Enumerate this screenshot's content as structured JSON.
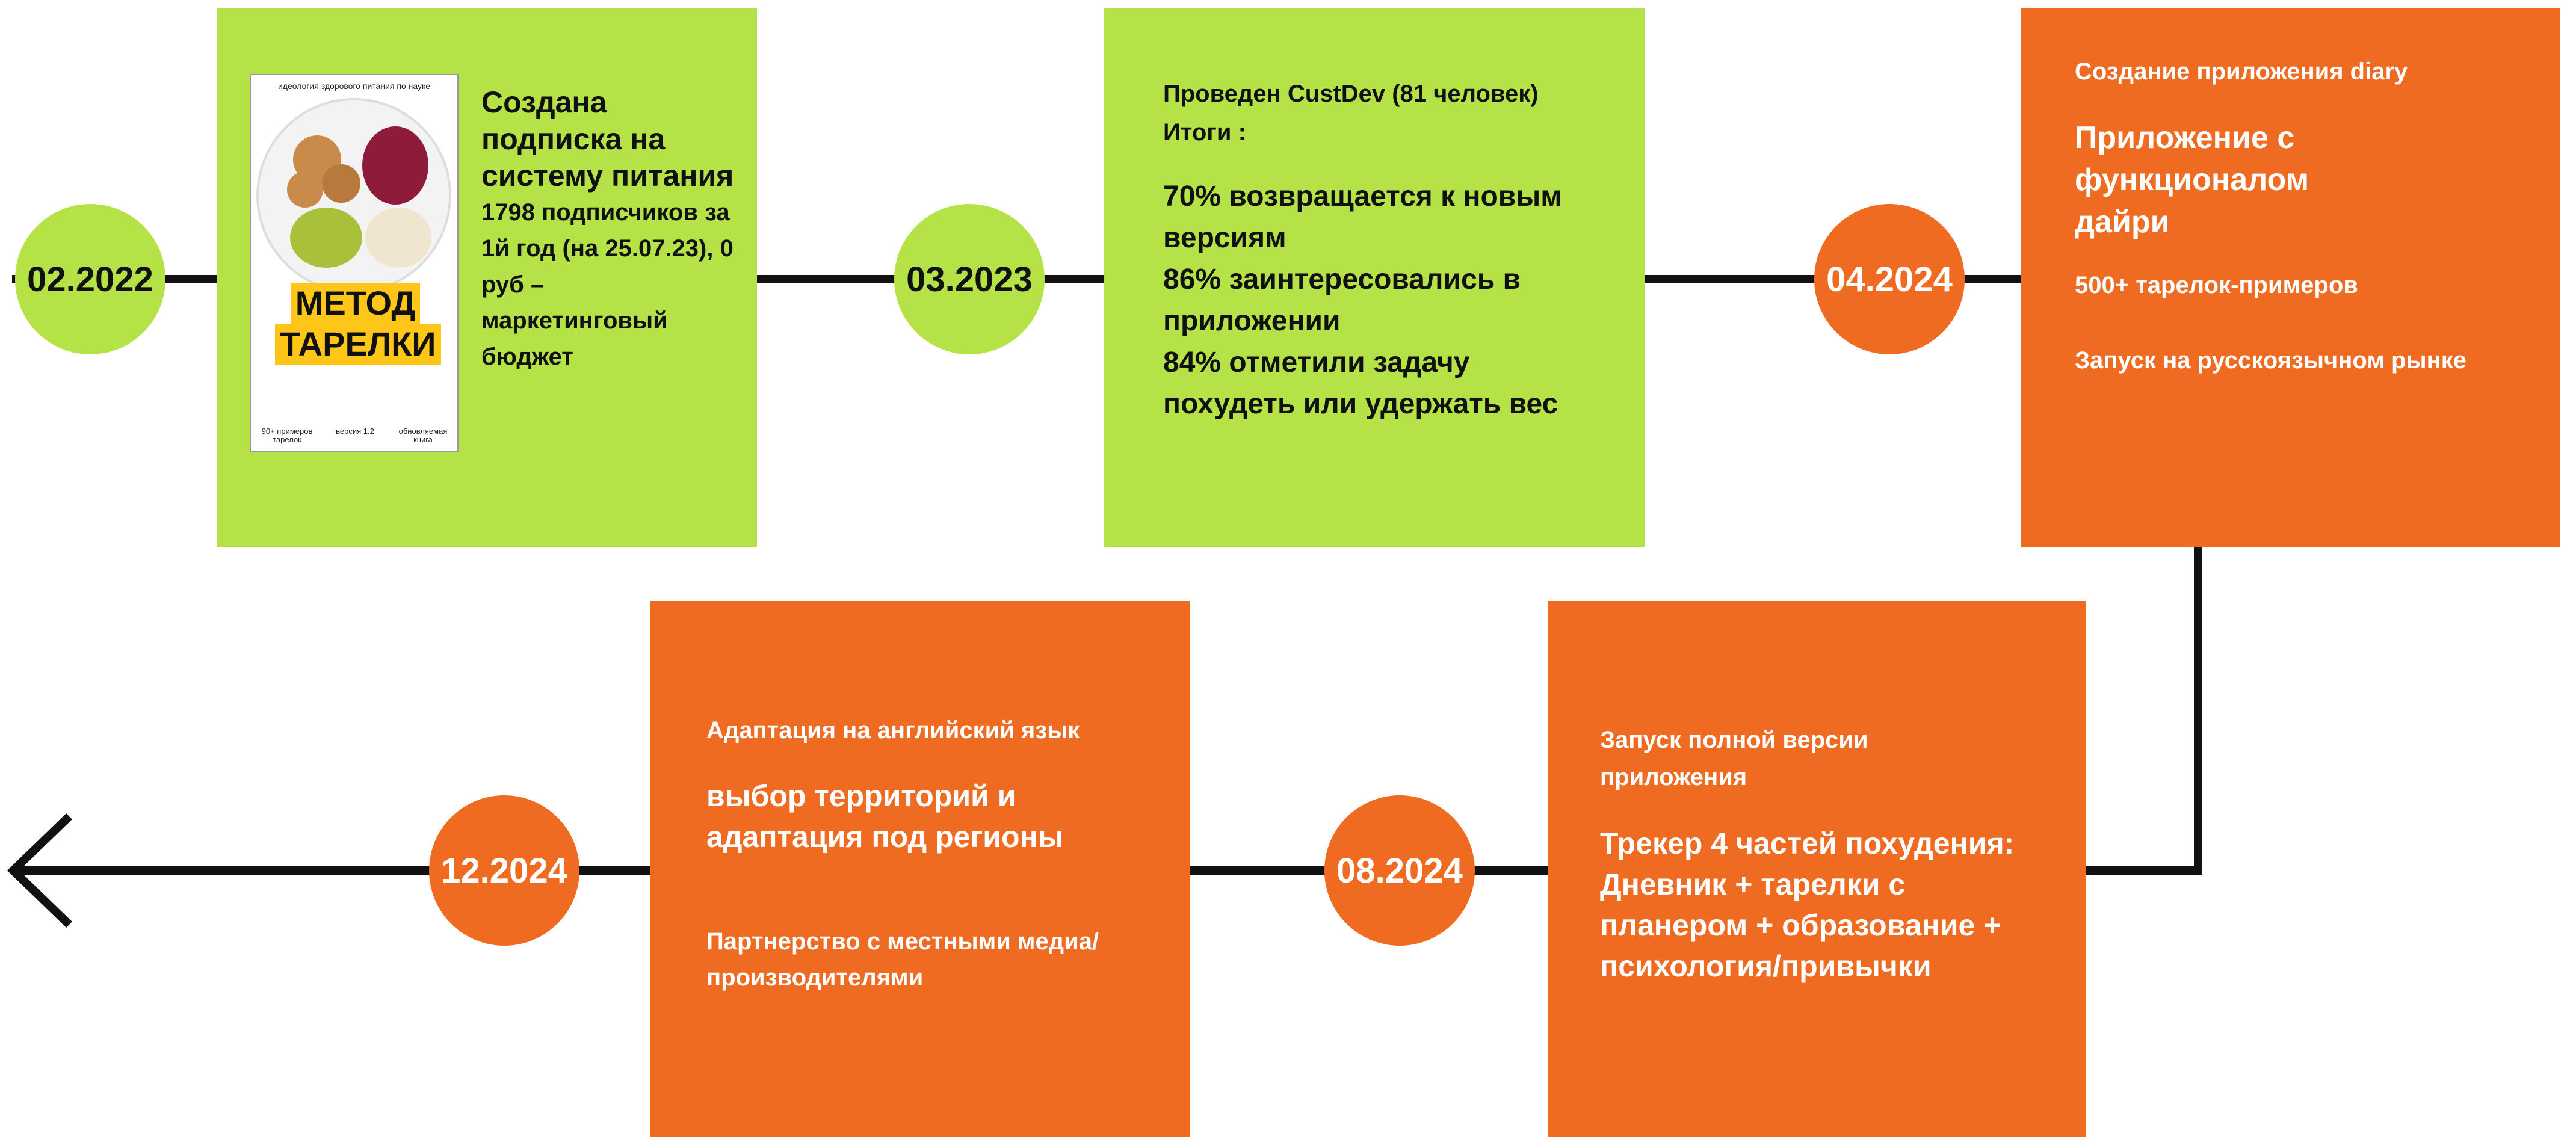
{
  "milestones": [
    {
      "date": "02.2022"
    },
    {
      "date": "03.2023"
    },
    {
      "date": "04.2024"
    },
    {
      "date": "08.2024"
    },
    {
      "date": "12.2024"
    }
  ],
  "book": {
    "subtitle": "идеология здорового питания по науке",
    "title_line1": "МЕТОД",
    "title_line2": "ТАРЕЛКИ",
    "features": [
      "90+ примеров тарелок",
      "версия 1.2",
      "обновляемая книга"
    ]
  },
  "cards": [
    {
      "heading": "Создана подписка на систему питания",
      "body": "1798 подписчиков за 1й год (на 25.07.23), 0 руб – маркетинговый бюджет"
    },
    {
      "intro": [
        "Проведен CustDev (81 человек)",
        "Итоги :"
      ],
      "results": [
        "70% возвращается к новым версиям",
        "86% заинтересовались в приложении",
        "84% отметили задачу похудеть или удержать вес"
      ]
    },
    {
      "caption": "Создание приложения diary",
      "heading": "Приложение с функционалом дайри",
      "points": [
        "500+ тарелок-примеров",
        "Запуск на русскоязычном рынке"
      ]
    },
    {
      "caption": "Запуск полной версии приложения",
      "heading": "Трекер 4 частей похудения: Дневник + тарелки с планером + образование + психология/привычки"
    },
    {
      "caption": "Адаптация на английский язык",
      "heading": "выбор территорий и адаптация под регионы",
      "points": [
        "Партнерство с местными медиа/ производителями"
      ]
    }
  ]
}
